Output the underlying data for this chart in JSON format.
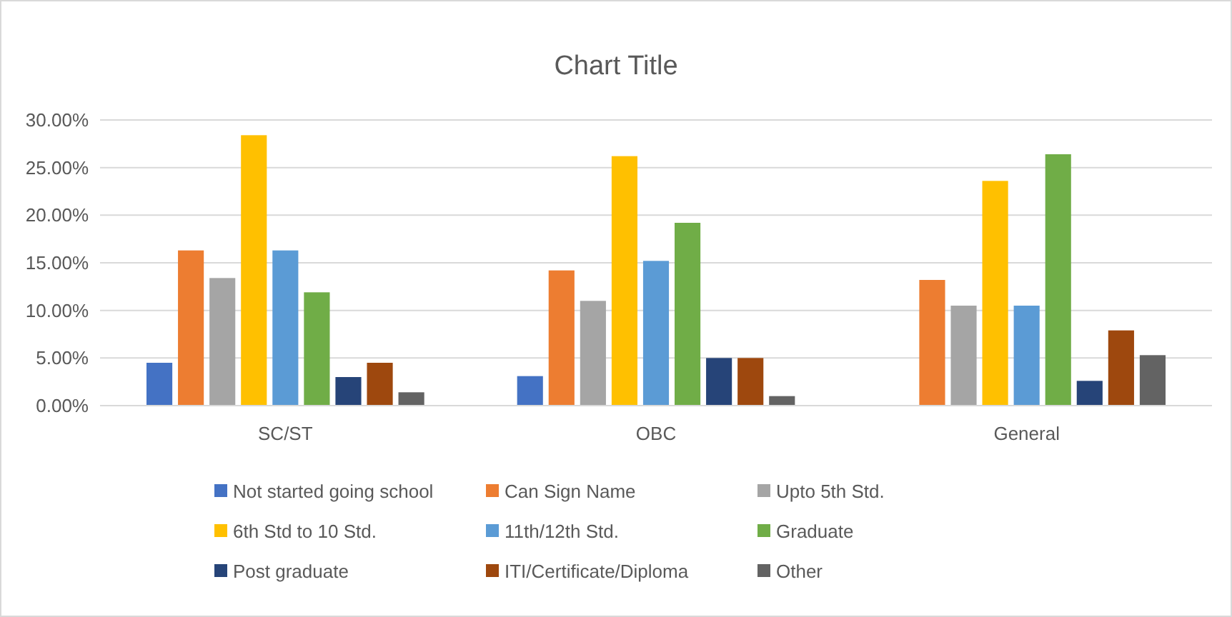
{
  "chart_data": {
    "type": "bar",
    "title": "Chart Title",
    "categories": [
      "SC/ST",
      "OBC",
      "General"
    ],
    "series": [
      {
        "name": "Not started going school",
        "color": "#4472c4",
        "values": [
          4.5,
          3.1,
          0
        ]
      },
      {
        "name": "Can Sign Name",
        "color": "#ed7d31",
        "values": [
          16.3,
          14.2,
          13.2
        ]
      },
      {
        "name": "Upto 5th Std.",
        "color": "#a5a5a5",
        "values": [
          13.4,
          11.0,
          10.5
        ]
      },
      {
        "name": "6th Std to 10 Std.",
        "color": "#ffc000",
        "values": [
          28.4,
          26.2,
          23.6
        ]
      },
      {
        "name": "11th/12th Std.",
        "color": "#5b9bd5",
        "values": [
          16.3,
          15.2,
          10.5
        ]
      },
      {
        "name": "Graduate",
        "color": "#70ad47",
        "values": [
          11.9,
          19.2,
          26.4
        ]
      },
      {
        "name": "Post graduate",
        "color": "#264478",
        "values": [
          3.0,
          5.0,
          2.6
        ]
      },
      {
        "name": "ITI/Certificate/Diploma",
        "color": "#9e480e",
        "values": [
          4.5,
          5.0,
          7.9
        ]
      },
      {
        "name": "Other",
        "color": "#636363",
        "values": [
          1.4,
          1.0,
          5.3
        ]
      }
    ],
    "ylim": [
      0,
      30
    ],
    "yticks": [
      {
        "value": 0,
        "label": "0.00%"
      },
      {
        "value": 5,
        "label": "5.00%"
      },
      {
        "value": 10,
        "label": "10.00%"
      },
      {
        "value": 15,
        "label": "15.00%"
      },
      {
        "value": 20,
        "label": "20.00%"
      },
      {
        "value": 25,
        "label": "25.00%"
      },
      {
        "value": 30,
        "label": "30.00%"
      }
    ],
    "grid": "y",
    "legend": "bottom"
  }
}
